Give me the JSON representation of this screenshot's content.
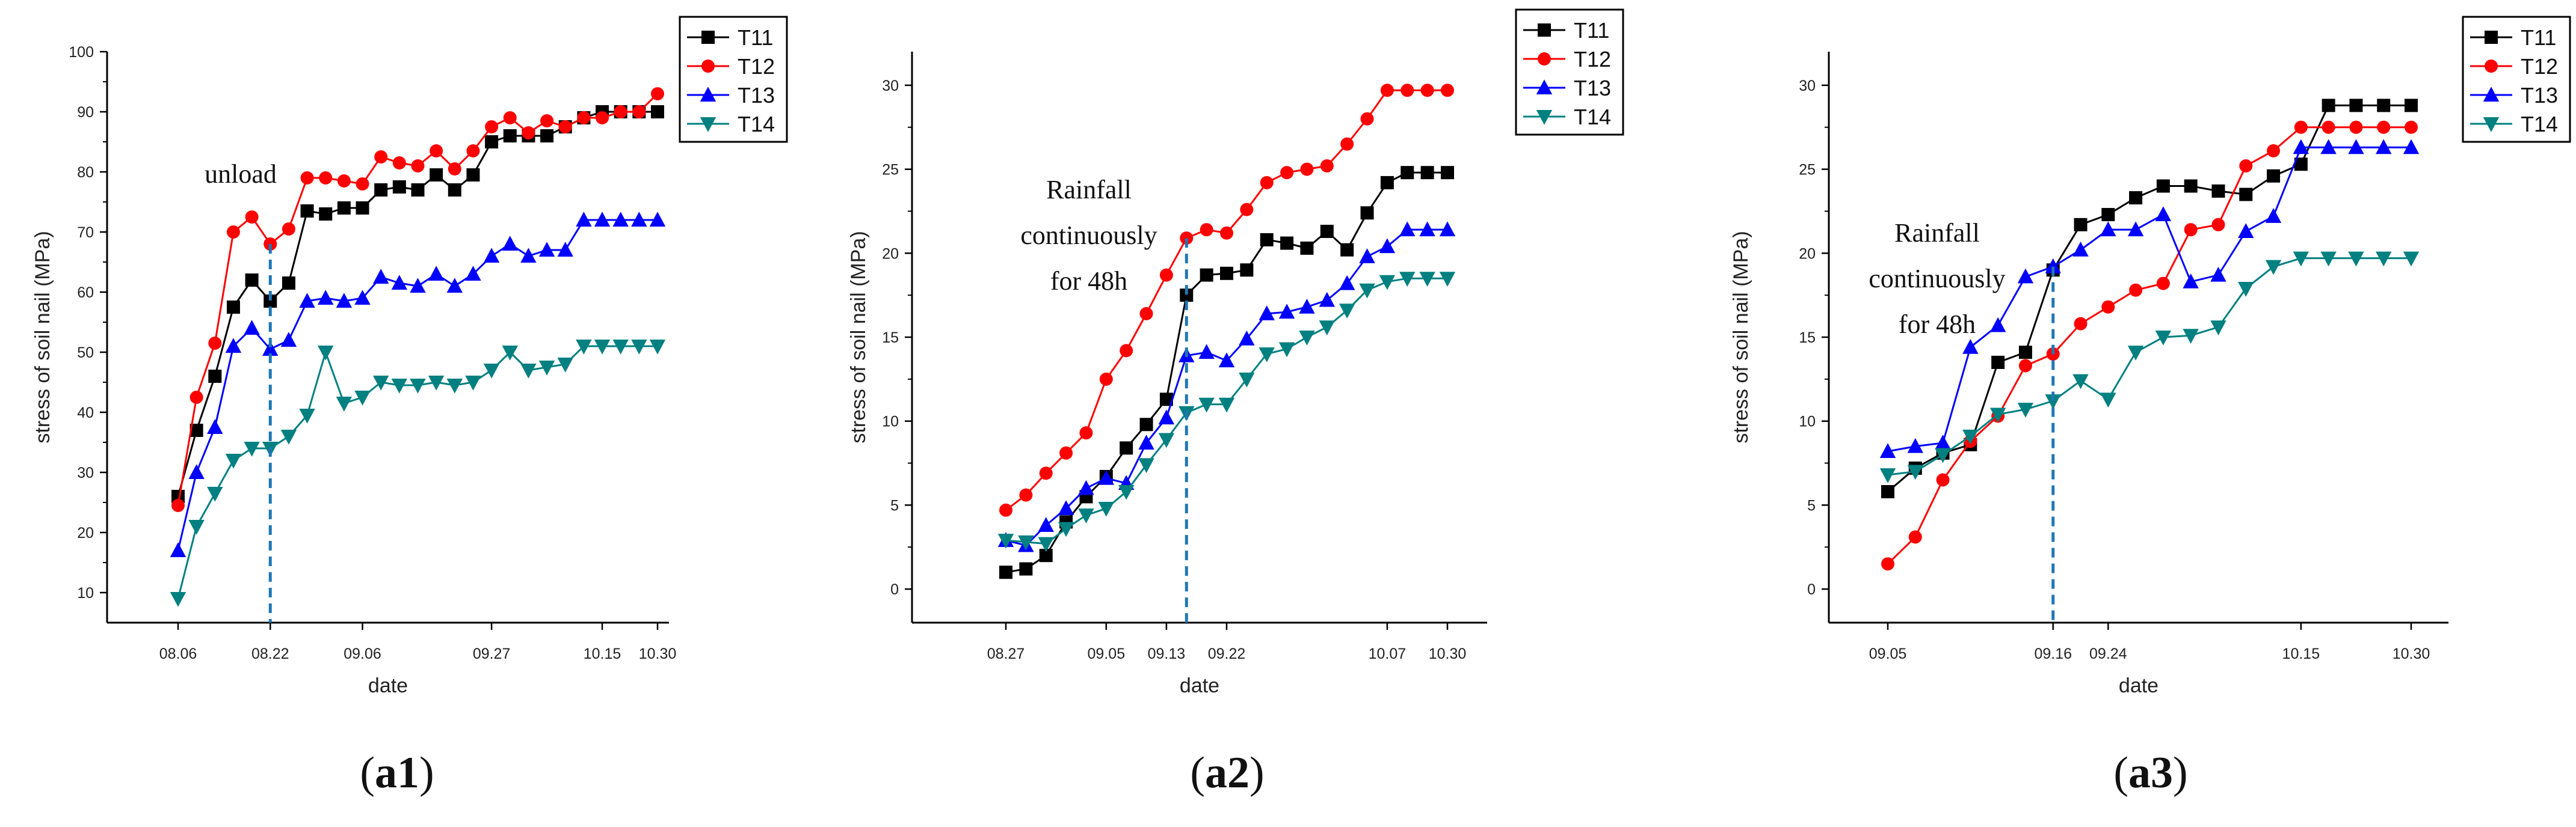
{
  "colors": {
    "T11": "#000000",
    "T12": "#ff0000",
    "T13": "#0000ff",
    "T14": "#008080",
    "marker_line": "#1f77b4"
  },
  "chart_data": [
    {
      "type": "line",
      "caption_paren_open": "(",
      "caption": "a1",
      "caption_paren_close": ")",
      "xlabel": "date",
      "ylabel": "stress of soil nail (MPa)",
      "ylim": [
        5,
        100
      ],
      "yticks": [
        10,
        20,
        30,
        40,
        50,
        60,
        70,
        80,
        90,
        100
      ],
      "n_points": 27,
      "xticks": [
        {
          "i": 0,
          "label": "08.06"
        },
        {
          "i": 5,
          "label": "08.22"
        },
        {
          "i": 10,
          "label": "09.06"
        },
        {
          "i": 17,
          "label": "09.27"
        },
        {
          "i": 23,
          "label": "10.15"
        },
        {
          "i": 26,
          "label": "10.30"
        }
      ],
      "event_index": 5,
      "annotation": [
        "unload"
      ],
      "series": [
        {
          "name": "T11",
          "marker": "square",
          "values": [
            26,
            37,
            46,
            57.5,
            62,
            58.5,
            61.5,
            73.5,
            73,
            74,
            74,
            77,
            77.5,
            77,
            79.5,
            77,
            79.5,
            85,
            86,
            86,
            86,
            87.5,
            89,
            90,
            90,
            90,
            90
          ]
        },
        {
          "name": "T12",
          "marker": "circle",
          "values": [
            24.5,
            42.5,
            51.5,
            70,
            72.5,
            68,
            70.5,
            79,
            79,
            78.5,
            78,
            82.5,
            81.5,
            81,
            83.5,
            80.5,
            83.5,
            87.5,
            89,
            86.5,
            88.5,
            87.5,
            89,
            89,
            90,
            90,
            93
          ]
        },
        {
          "name": "T13",
          "marker": "triangle-up",
          "values": [
            17,
            30,
            37.5,
            51,
            54,
            50.5,
            52,
            58.5,
            59,
            58.5,
            59,
            62.5,
            61.5,
            61,
            63,
            61,
            63,
            66,
            68,
            66,
            67,
            67,
            72,
            72,
            72,
            72,
            72
          ]
        },
        {
          "name": "T14",
          "marker": "triangle-down",
          "values": [
            9,
            21,
            26.5,
            32,
            34,
            34,
            36,
            39.5,
            50,
            41.5,
            42.5,
            45,
            44.5,
            44.5,
            45,
            44.5,
            45,
            47,
            50,
            47,
            47.5,
            48,
            51,
            51,
            51,
            51,
            51
          ]
        }
      ]
    },
    {
      "type": "line",
      "caption_paren_open": "(",
      "caption": "a2",
      "caption_paren_close": ")",
      "xlabel": "date",
      "ylabel": "stress of soil nail (MPa)",
      "ylim": [
        -2,
        32
      ],
      "yticks": [
        0,
        5,
        10,
        15,
        20,
        25,
        30
      ],
      "n_points": 23,
      "xticks": [
        {
          "i": 0,
          "label": "08.27"
        },
        {
          "i": 5,
          "label": "09.05"
        },
        {
          "i": 8,
          "label": "09.13"
        },
        {
          "i": 11,
          "label": "09.22"
        },
        {
          "i": 19,
          "label": "10.07"
        },
        {
          "i": 22,
          "label": "10.30"
        }
      ],
      "event_index": 9,
      "annotation": [
        "Rainfall",
        "continuously",
        "for 48h"
      ],
      "series": [
        {
          "name": "T11",
          "marker": "square",
          "values": [
            1,
            1.2,
            2,
            4,
            5.5,
            6.7,
            8.4,
            9.8,
            11.3,
            17.5,
            18.7,
            18.8,
            19,
            20.8,
            20.6,
            20.3,
            21.3,
            20.2,
            22.4,
            24.2,
            24.8,
            24.8,
            24.8
          ]
        },
        {
          "name": "T12",
          "marker": "circle",
          "values": [
            4.7,
            5.6,
            6.9,
            8.1,
            9.3,
            12.5,
            14.2,
            16.4,
            18.7,
            20.9,
            21.4,
            21.2,
            22.6,
            24.2,
            24.8,
            25,
            25.2,
            26.5,
            28,
            29.7,
            29.7,
            29.7,
            29.7
          ]
        },
        {
          "name": "T13",
          "marker": "triangle-up",
          "values": [
            2.9,
            2.6,
            3.8,
            4.8,
            6,
            6.6,
            6.3,
            8.7,
            10.2,
            13.9,
            14.1,
            13.6,
            14.9,
            16.4,
            16.5,
            16.8,
            17.2,
            18.2,
            19.8,
            20.4,
            21.4,
            21.4,
            21.4
          ]
        },
        {
          "name": "T14",
          "marker": "triangle-down",
          "values": [
            2.9,
            2.8,
            2.7,
            3.6,
            4.4,
            4.8,
            5.8,
            7.4,
            8.9,
            10.5,
            11,
            11,
            12.5,
            14,
            14.3,
            15,
            15.6,
            16.6,
            17.8,
            18.3,
            18.5,
            18.5,
            18.5
          ]
        }
      ]
    },
    {
      "type": "line",
      "caption_paren_open": "(",
      "caption": "a3",
      "caption_paren_close": ")",
      "xlabel": "date",
      "ylabel": "stress of soil nail (MPa)",
      "ylim": [
        -2,
        32
      ],
      "yticks": [
        0,
        5,
        10,
        15,
        20,
        25,
        30
      ],
      "n_points": 20,
      "xticks": [
        {
          "i": 0,
          "label": "09.05"
        },
        {
          "i": 6,
          "label": "09.16"
        },
        {
          "i": 8,
          "label": "09.24"
        },
        {
          "i": 15,
          "label": "10.15"
        },
        {
          "i": 19,
          "label": "10.30"
        }
      ],
      "event_index": 6,
      "annotation": [
        "Rainfall",
        "continuously",
        "for 48h"
      ],
      "series": [
        {
          "name": "T11",
          "marker": "square",
          "values": [
            5.8,
            7.2,
            8.1,
            8.6,
            13.5,
            14.1,
            19,
            21.7,
            22.3,
            23.3,
            24,
            24,
            23.7,
            23.5,
            24.6,
            25.3,
            28.8,
            28.8,
            28.8,
            28.8
          ]
        },
        {
          "name": "T12",
          "marker": "circle",
          "values": [
            1.5,
            3.1,
            6.5,
            8.8,
            10.3,
            13.3,
            14,
            15.8,
            16.8,
            17.8,
            18.2,
            21.4,
            21.7,
            25.2,
            26.1,
            27.5,
            27.5,
            27.5,
            27.5,
            27.5
          ]
        },
        {
          "name": "T13",
          "marker": "triangle-up",
          "values": [
            8.2,
            8.5,
            8.7,
            14.4,
            15.7,
            18.6,
            19.2,
            20.2,
            21.4,
            21.4,
            22.3,
            18.3,
            18.7,
            21.3,
            22.2,
            26.3,
            26.3,
            26.3,
            26.3,
            26.3
          ]
        },
        {
          "name": "T14",
          "marker": "triangle-down",
          "values": [
            6.8,
            7,
            8,
            9.1,
            10.4,
            10.7,
            11.2,
            12.4,
            11.3,
            14.1,
            15,
            15.1,
            15.6,
            17.9,
            19.2,
            19.7,
            19.7,
            19.7,
            19.7,
            19.7
          ]
        }
      ]
    }
  ]
}
